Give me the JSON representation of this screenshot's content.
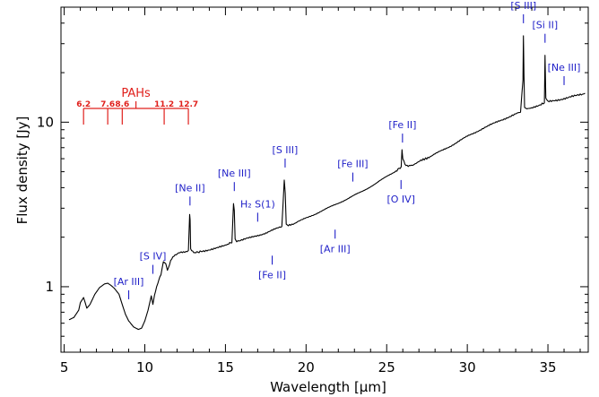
{
  "chart_data": {
    "type": "line",
    "xlabel": "Wavelength [μm]",
    "ylabel": "Flux density [Jy]",
    "xlim": [
      4.8,
      37.5
    ],
    "ylim": [
      0.4,
      50
    ],
    "ylog": true,
    "x_ticks": [
      5,
      10,
      15,
      20,
      25,
      30,
      35
    ],
    "x_tick_labels": [
      "5",
      "10",
      "15",
      "20",
      "25",
      "30",
      "35"
    ],
    "y_ticks": [
      1,
      10
    ],
    "y_tick_labels": [
      "1",
      "10"
    ],
    "line_color": "#000000",
    "series": [
      {
        "x": [
          5.3,
          5.6,
          5.9,
          6.0,
          6.2,
          6.3,
          6.4,
          6.6,
          6.9,
          7.2,
          7.5,
          7.7,
          7.9,
          8.1,
          8.4,
          8.6,
          8.8,
          9.0,
          9.3,
          9.6,
          9.8,
          10.0,
          10.2,
          10.4,
          10.5,
          10.6,
          10.8,
          11.0,
          11.15,
          11.3,
          11.4,
          11.6,
          11.8,
          12.1,
          12.4,
          12.7,
          12.78,
          12.81,
          12.84,
          12.9,
          13.1,
          13.5,
          14.0,
          14.5,
          15.0,
          15.4,
          15.5,
          15.55,
          15.6,
          15.7,
          16.0,
          16.5,
          17.0,
          17.5,
          18.0,
          18.5,
          18.65,
          18.71,
          18.77,
          18.9,
          19.5,
          20.5,
          21.5,
          22.5,
          23.5,
          24.5,
          25.5,
          25.9,
          25.95,
          26.0,
          26.2,
          26.6,
          28.0,
          29.0,
          30.0,
          31.0,
          32.0,
          33.0,
          33.3,
          33.45,
          33.48,
          33.51,
          33.55,
          33.7,
          34.0,
          34.5,
          34.78,
          34.82,
          34.87,
          35.0,
          35.5,
          36.0,
          36.5,
          37.0,
          37.3
        ],
        "y": [
          0.63,
          0.65,
          0.72,
          0.8,
          0.86,
          0.8,
          0.74,
          0.78,
          0.9,
          0.99,
          1.04,
          1.05,
          1.02,
          0.98,
          0.9,
          0.78,
          0.68,
          0.62,
          0.57,
          0.55,
          0.56,
          0.62,
          0.72,
          0.88,
          0.78,
          0.88,
          1.05,
          1.18,
          1.42,
          1.38,
          1.25,
          1.45,
          1.55,
          1.6,
          1.62,
          1.66,
          2.75,
          2.55,
          1.7,
          1.66,
          1.62,
          1.64,
          1.68,
          1.72,
          1.78,
          1.85,
          3.2,
          2.9,
          1.95,
          1.9,
          1.92,
          1.98,
          2.05,
          2.12,
          2.22,
          2.32,
          4.45,
          3.7,
          2.4,
          2.35,
          2.48,
          2.75,
          3.05,
          3.4,
          3.8,
          4.35,
          5.0,
          5.35,
          6.8,
          6.0,
          5.45,
          5.5,
          6.4,
          7.2,
          8.2,
          9.2,
          10.2,
          11.2,
          11.5,
          18.0,
          33.5,
          20.0,
          12.3,
          12.0,
          12.3,
          12.7,
          13.1,
          25.5,
          14.0,
          13.3,
          13.6,
          13.9,
          14.3,
          14.7,
          15.0
        ]
      }
    ],
    "annotations": [
      {
        "label": "[Ar III]",
        "x": 9.0,
        "pos": "above"
      },
      {
        "label": "[S IV]",
        "x": 10.5,
        "pos": "above"
      },
      {
        "label": "[Ne II]",
        "x": 12.8,
        "pos": "above"
      },
      {
        "label": "[Ne III]",
        "x": 15.55,
        "pos": "above"
      },
      {
        "label": "H₂ S(1)",
        "x": 17.0,
        "pos": "above"
      },
      {
        "label": "[Fe II]",
        "x": 17.9,
        "pos": "below"
      },
      {
        "label": "[S III]",
        "x": 18.7,
        "pos": "above"
      },
      {
        "label": "[Ar III]",
        "x": 21.8,
        "pos": "below"
      },
      {
        "label": "[Fe III]",
        "x": 22.9,
        "pos": "above"
      },
      {
        "label": "[Fe II]",
        "x": 25.98,
        "pos": "above"
      },
      {
        "label": "[O IV]",
        "x": 25.89,
        "pos": "below"
      },
      {
        "label": "[S III]",
        "x": 33.48,
        "pos": "above"
      },
      {
        "label": "[Si II]",
        "x": 34.82,
        "pos": "above"
      },
      {
        "label": "[Ne III]",
        "x": 36.0,
        "pos": "above"
      }
    ],
    "pah": {
      "title": "PAHs",
      "features": [
        {
          "x": 6.2,
          "label": "6.2"
        },
        {
          "x": 7.7,
          "label": "7.6"
        },
        {
          "x": 8.6,
          "label": "8.6"
        },
        {
          "x": 11.2,
          "label": "11.2"
        },
        {
          "x": 12.7,
          "label": "12.7"
        }
      ]
    },
    "colors": {
      "annotation": "#1f1fc8",
      "pah": "#e0201c",
      "line": "#000000"
    }
  }
}
